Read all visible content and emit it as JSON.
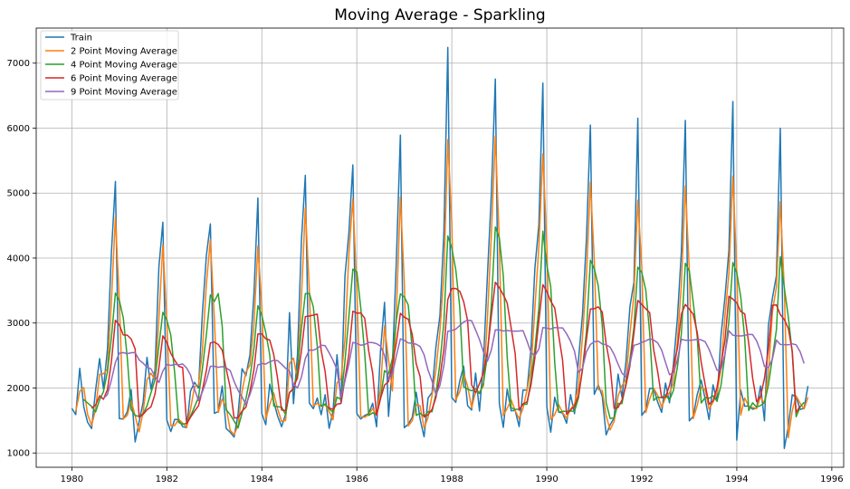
{
  "chart_data": {
    "type": "line",
    "title": "Moving Average - Sparkling",
    "xlabel": "",
    "ylabel": "",
    "xlim": [
      1979.25,
      1996.25
    ],
    "ylim": [
      780,
      7540
    ],
    "x_ticks": [
      1980,
      1982,
      1984,
      1986,
      1988,
      1990,
      1992,
      1994,
      1996
    ],
    "y_ticks": [
      1000,
      2000,
      3000,
      4000,
      5000,
      6000,
      7000
    ],
    "grid": true,
    "legend_position": "top-left",
    "x_start": 1980,
    "x_step_per_point": 0.0833333,
    "series": [
      {
        "name": "Train",
        "color": "#1f77b4",
        "values": [
          1686,
          1591,
          2304,
          1712,
          1471,
          1377,
          1966,
          2453,
          1984,
          2596,
          4087,
          5179,
          1530,
          1523,
          1633,
          1976,
          1170,
          1480,
          1781,
          2472,
          1981,
          2273,
          3857,
          4551,
          1510,
          1329,
          1518,
          1516,
          1404,
          1390,
          1954,
          2088,
          2000,
          3157,
          4040,
          4525,
          1609,
          1638,
          2030,
          1375,
          1320,
          1245,
          1600,
          2298,
          2191,
          2511,
          3440,
          4923,
          1609,
          1435,
          2061,
          1789,
          1567,
          1404,
          1597,
          3159,
          1759,
          2504,
          4273,
          5274,
          1771,
          1682,
          1846,
          1589,
          1896,
          1379,
          1645,
          2512,
          1771,
          3727,
          4388,
          5434,
          1606,
          1523,
          1577,
          1605,
          1765,
          1403,
          2584,
          3318,
          1562,
          2349,
          3987,
          5891,
          1389,
          1442,
          1548,
          1935,
          1518,
          1250,
          1847,
          1930,
          2638,
          3114,
          4405,
          7242,
          1853,
          1779,
          2108,
          2336,
          1728,
          1661,
          2230,
          1645,
          2421,
          3740,
          4988,
          6757,
          1757,
          1394,
          1982,
          1650,
          1654,
          1406,
          1971,
          1968,
          2608,
          3845,
          4514,
          6694,
          1710,
          1321,
          1859,
          1628,
          1615,
          1457,
          1899,
          1605,
          2424,
          3116,
          4286,
          6047,
          1902,
          2049,
          1874,
          1279,
          1432,
          1540,
          2214,
          1857,
          2408,
          3252,
          3627,
          6153,
          1577,
          1667,
          1993,
          1997,
          1783,
          1625,
          2076,
          1773,
          2377,
          3088,
          4096,
          6119,
          1494,
          1564,
          1898,
          2121,
          1831,
          1515,
          2048,
          1795,
          2808,
          3388,
          4114,
          6410,
          1197,
          1968,
          1720,
          1725,
          1674,
          1693,
          2031,
          1495,
          2968,
          3385,
          3729,
          5999,
          1070,
          1402,
          1897,
          1862,
          1670,
          1688,
          2031
        ]
      },
      {
        "name": "2 Point Moving Average",
        "color": "#ff7f0e",
        "values": [
          null,
          1638.5,
          1947.5,
          2008,
          1591.5,
          1424,
          1671.5,
          2209.5,
          2218.5,
          2290,
          3341.5,
          4633,
          3354.5,
          1526.5,
          1578,
          1804.5,
          1573,
          1325,
          1630.5,
          2126.5,
          2226.5,
          2127,
          3065,
          4204,
          3030.5,
          1419.5,
          1423.5,
          1517,
          1460,
          1397,
          1672,
          2021,
          2044,
          2578.5,
          3598.5,
          4282.5,
          3067,
          1623.5,
          1834,
          1702.5,
          1347.5,
          1282.5,
          1422.5,
          1949,
          2244.5,
          2351,
          2975.5,
          4181.5,
          3266,
          1522,
          1748,
          1925,
          1678,
          1485.5,
          1500.5,
          2378,
          2459,
          2131.5,
          3388.5,
          4773.5,
          3522.5,
          1726.5,
          1764,
          1717.5,
          1742.5,
          1637.5,
          1512,
          2078.5,
          2141.5,
          2749,
          4057.5,
          4911,
          3520,
          1564.5,
          1550,
          1591,
          1685,
          1584,
          1993.5,
          2951,
          2440,
          1955.5,
          3168,
          4939,
          3640,
          1415.5,
          1495,
          1741.5,
          1726.5,
          1384,
          1548.5,
          1888.5,
          2284,
          2876,
          3759.5,
          5823.5,
          4547.5,
          1816,
          1943.5,
          2222,
          2032,
          1694.5,
          1945.5,
          1937.5,
          2033,
          3080.5,
          4364,
          5872.5,
          4257,
          1575.5,
          1688,
          1816,
          1652,
          1530,
          1688.5,
          1969.5,
          2288,
          3226.5,
          4179.5,
          5604,
          4202,
          1515.5,
          1590,
          1743.5,
          1621.5,
          1536,
          1678,
          1752,
          2014.5,
          2770,
          3701,
          5166.5,
          3974.5,
          1975.5,
          1961.5,
          1576.5,
          1355.5,
          1486,
          1877,
          2035.5,
          2132.5,
          2830,
          3439.5,
          4890,
          3865,
          1622,
          1830,
          1995,
          1890,
          1704,
          1850.5,
          1924.5,
          2075,
          2732.5,
          3592,
          5107.5,
          3806.5,
          1529,
          1731,
          2009.5,
          1976,
          1673,
          1781.5,
          1921.5,
          2301.5,
          3098,
          3751,
          5262,
          3803.5,
          1582.5,
          1844,
          1722.5,
          1699.5,
          1683.5,
          1862,
          1763,
          2231.5,
          3176.5,
          3557,
          4864,
          3534.5,
          1236,
          1649.5,
          1879.5,
          1766,
          1679,
          1859.5
        ]
      },
      {
        "name": "4 Point Moving Average",
        "color": "#2ca02c",
        "values": [
          null,
          null,
          null,
          1823.25,
          1769.5,
          1716,
          1631.5,
          1816.75,
          1945,
          2249.75,
          2780,
          3461.5,
          3348,
          3079.75,
          2466.25,
          1665.5,
          1575.5,
          1564.75,
          1600.25,
          1725.75,
          1928.5,
          2126.75,
          2645.75,
          3165.5,
          3047.75,
          2811.75,
          2227,
          1468.25,
          1441.75,
          1457,
          1566,
          1709,
          1858,
          2299.75,
          2821.25,
          3430.5,
          3332.75,
          3453,
          2950.5,
          1663,
          1590.75,
          1492.5,
          1385,
          1615.75,
          1833.5,
          2150,
          2610,
          3266.25,
          3120.75,
          2852,
          2507,
          1723.5,
          1712.75,
          1705.25,
          1589.25,
          1931.75,
          1979.75,
          2254.75,
          2923.75,
          3452.5,
          3455.5,
          3250,
          2643.25,
          1722,
          1753.25,
          1677.5,
          1627.25,
          1858,
          1826.75,
          2413.75,
          3099.5,
          3830,
          3788.75,
          3237.75,
          2535,
          1577.75,
          1617.5,
          1587.5,
          1839.25,
          2267.5,
          2216.75,
          2453.25,
          3054,
          3447.25,
          3404.25,
          3277.25,
          2592.5,
          1578.5,
          1610.75,
          1562.75,
          1637.5,
          1636.25,
          1916.25,
          2382.25,
          3021.75,
          4340.25,
          4153.5,
          3819.75,
          3245.5,
          2019,
          1983.25,
          1958.25,
          1991,
          1916,
          2074.25,
          2509,
          3287.5,
          4476.5,
          4310.5,
          3724,
          2472.5,
          1695.75,
          1670,
          1673,
          1747.25,
          1749.75,
          2128.75,
          2598,
          3233.75,
          4415.25,
          3892.25,
          3558.5,
          2396,
          1629.5,
          1639.75,
          1639.75,
          1644,
          1644,
          1846.25,
          2285.75,
          2857.75,
          3968.25,
          3838.25,
          3571.25,
          2968,
          1776,
          1531.25,
          1541.25,
          1760.75,
          1760.75,
          2077.75,
          2432.25,
          2936,
          3860,
          3779.75,
          3505.25,
          2847.5,
          1808.5,
          1860,
          1849.5,
          1894.25,
          1814.25,
          1962.75,
          2328.5,
          2833.5,
          3920,
          3799.25,
          3318.25,
          2792,
          1769.25,
          1853.5,
          1841.25,
          1878.75,
          1797.25,
          2041.5,
          2509.75,
          3026.25,
          3930,
          3777.5,
          3404.75,
          2762.75,
          1652.5,
          1771.75,
          1705.5,
          1730.75,
          1773.25,
          2046.75,
          2469.75,
          2894.25,
          4020.25,
          3545.75,
          3101,
          2541.75,
          1557.75,
          1707.75,
          1779.25
        ]
      },
      {
        "name": "6 Point Moving Average",
        "color": "#d62728",
        "values": [
          null,
          null,
          null,
          null,
          null,
          1690.17,
          1736.83,
          1880.5,
          1827.17,
          1974.5,
          2410.5,
          3044.17,
          2971.5,
          2815.67,
          2813.33,
          2753.83,
          2601.5,
          1548.83,
          1593.83,
          1665.33,
          1709.33,
          1904.5,
          2307.33,
          2802.83,
          2701.83,
          2533.17,
          2425.67,
          2333.83,
          2315.17,
          1444.5,
          1550.33,
          1642.67,
          1727,
          1968.17,
          2271.67,
          2694.33,
          2707.67,
          2670.33,
          2580.67,
          2290.83,
          2007.67,
          1537.83,
          1542.33,
          1644.67,
          1705.17,
          1944,
          2282.5,
          2832.33,
          2831.67,
          2758,
          2737.67,
          2513.25,
          2141.5,
          1660.5,
          1652.17,
          1929.5,
          1996.83,
          2166.33,
          2570,
          3098.83,
          3107.83,
          3121.83,
          3137.33,
          2577.83,
          2251.5,
          1693.83,
          1669.33,
          1753.5,
          1760.67,
          2141.17,
          2522.33,
          3181.33,
          3152.33,
          3155.67,
          3075.83,
          2570.83,
          2232.33,
          1579.83,
          1839.33,
          2044.33,
          2100.33,
          2360.17,
          2703.33,
          3149.33,
          3089.5,
          3059.83,
          2825.33,
          2370.33,
          2175.67,
          1552.33,
          1590,
          1672.5,
          1854.67,
          2161.33,
          2602,
          3362.67,
          3529.67,
          3533,
          3488.33,
          3330.83,
          3034.83,
          2050.17,
          1925.5,
          2066.17,
          2236,
          2568.5,
          3109.83,
          3627.33,
          3545.83,
          3435.17,
          3308.83,
          2924.67,
          2530.17,
          1656.17,
          1756.67,
          1786.17,
          2050.33,
          2465,
          3032.33,
          3589.5,
          3484.5,
          3336.17,
          3232.67,
          2810.83,
          2427.33,
          1596,
          1661.67,
          1720.33,
          1882,
          2275,
          2744.33,
          3216.67,
          3221,
          3250.17,
          3168.83,
          2681.33,
          2346.83,
          1687.5,
          1700,
          1814.17,
          2043.33,
          2340.83,
          2844.17,
          3347.5,
          3284.67,
          3218.67,
          3159,
          2591.17,
          2255.67,
          1852.67,
          1855.33,
          2042.83,
          2322.17,
          2615.17,
          3137.5,
          3286.33,
          3214.17,
          3134.33,
          2858.5,
          2396.17,
          2049.67,
          1752,
          1800.5,
          2009.17,
          2368.17,
          2728.67,
          3411,
          3368.67,
          3309.33,
          3177.17,
          3140.67,
          2687.67,
          2158.5,
          1790,
          1872.5,
          2149.5,
          2606,
          3273.17,
          3277.5,
          3130,
          3054.33,
          2921,
          2569.33,
          1621.5,
          1725.33
        ]
      },
      {
        "name": "9 Point Moving Average",
        "color": "#9467bd",
        "values": [
          null,
          null,
          null,
          null,
          null,
          null,
          null,
          null,
          1838.22,
          1900.56,
          2125.56,
          2392.44,
          2534.78,
          2544.22,
          2527.89,
          2542.89,
          2545.11,
          2433.33,
          2382.67,
          2319,
          2295.56,
          2179.89,
          2083.56,
          2262.78,
          2360.22,
          2347.56,
          2363.22,
          2356.67,
          2370.67,
          2307.56,
          2198.89,
          1978.22,
          1806.67,
          1939,
          2112.11,
          2333.56,
          2334.33,
          2318.78,
          2328.11,
          2310,
          2268.78,
          2100.67,
          1963.33,
          1862.11,
          1746.78,
          1900.56,
          2098.22,
          2355.22,
          2377.89,
          2369,
          2404.33,
          2426.22,
          2422.56,
          2365.56,
          2302.78,
          2256.89,
          2059.44,
          1999.67,
          2167.89,
          2452.22,
          2585.44,
          2581.89,
          2609.33,
          2659.11,
          2649.89,
          2541.67,
          2426.89,
          2282.44,
          1860,
          2111.67,
          2367.11,
          2702.22,
          2685.44,
          2659.11,
          2668.67,
          2702,
          2697.89,
          2683.22,
          2644,
          2504.22,
          2139.78,
          2216.67,
          2500.22,
          2755.78,
          2734.44,
          2693.44,
          2689.67,
          2674,
          2637.78,
          2510.78,
          2273.67,
          2103.67,
          1892.56,
          2040.22,
          2351,
          2875.44,
          2883.67,
          2905.78,
          2962.11,
          3015.33,
          3045.44,
          3035.22,
          2893.11,
          2744.89,
          2554.67,
          2411.67,
          2586.22,
          2896.44,
          2893.11,
          2877.78,
          2885.33,
          2877.56,
          2875.56,
          2878,
          2883.67,
          2721.56,
          2546.22,
          2494.33,
          2600.89,
          2929.78,
          2921.67,
          2907.89,
          2931.33,
          2927.11,
          2925.33,
          2835.33,
          2718.44,
          2564.56,
          2242.78,
          2300.56,
          2556.22,
          2669.78,
          2710.67,
          2719.89,
          2676.33,
          2666.56,
          2627.89,
          2517.33,
          2367.44,
          2228.89,
          2168.56,
          2372.33,
          2657.22,
          2672.78,
          2702.22,
          2725.67,
          2755.33,
          2738.89,
          2695.33,
          2584.56,
          2394.44,
          2204.11,
          2234.78,
          2433.56,
          2751.22,
          2733.89,
          2734.67,
          2738.67,
          2749.78,
          2741.44,
          2712.11,
          2596.78,
          2438.44,
          2273.44,
          2286.56,
          2521.22,
          2881.22,
          2812.11,
          2805.67,
          2800.44,
          2809.22,
          2824.33,
          2822.56,
          2727.67,
          2564.89,
          2329.89,
          2316.44,
          2447,
          2738.44,
          2669.78,
          2667.11,
          2664.11,
          2680.44,
          2664.22,
          2557.89,
          2376.89
        ]
      }
    ]
  }
}
